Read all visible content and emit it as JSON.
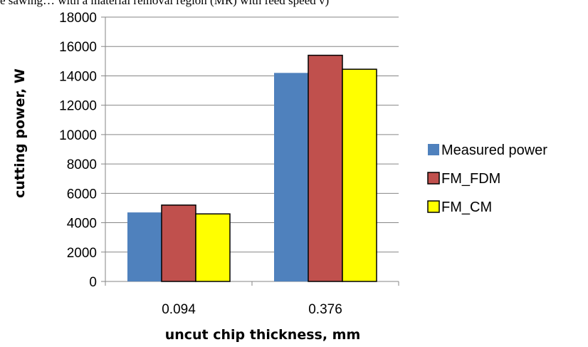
{
  "caption": "e sawing… with a material removal region (MR) with feed speed v)",
  "chart_data": {
    "type": "bar",
    "title": "",
    "xlabel": "uncut chip thickness, mm",
    "ylabel": "cutting power, W",
    "categories": [
      "0.094",
      "0.376"
    ],
    "ylim": [
      0,
      18000
    ],
    "yticks": [
      0,
      2000,
      4000,
      6000,
      8000,
      10000,
      12000,
      14000,
      16000,
      18000
    ],
    "grid": true,
    "legend_position": "right",
    "series": [
      {
        "name": "Measured power",
        "values": [
          4700,
          14200
        ],
        "color": "#4f81bd"
      },
      {
        "name": "FM_FDM",
        "values": [
          5200,
          15400
        ],
        "color": "#c0504d"
      },
      {
        "name": "FM_CM",
        "values": [
          4600,
          14450
        ],
        "color": "#ffff00"
      }
    ]
  }
}
